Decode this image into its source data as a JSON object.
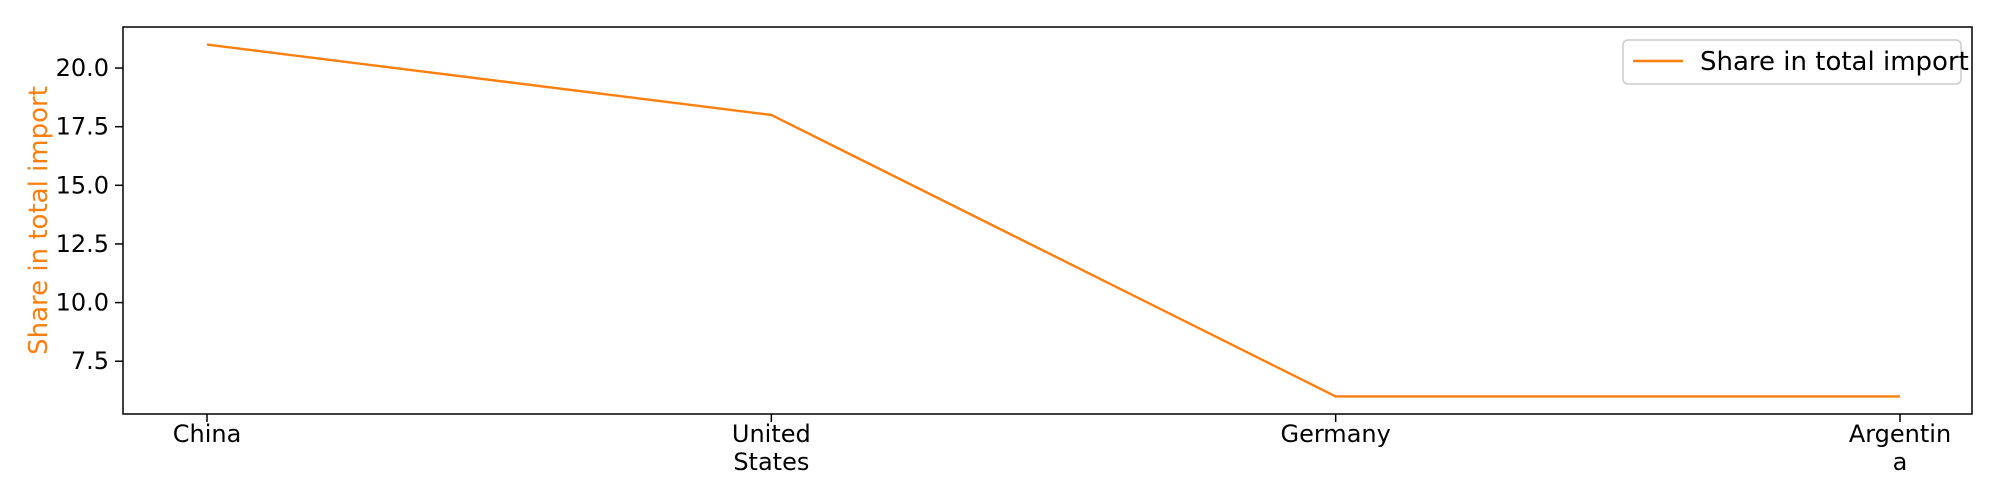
{
  "chart_data": {
    "type": "line",
    "categories": [
      "China",
      "United States",
      "Germany",
      "Argentina"
    ],
    "category_tick_lines": [
      [
        "China"
      ],
      [
        "United",
        "States"
      ],
      [
        "Germany"
      ],
      [
        "Argentin",
        "a"
      ]
    ],
    "series": [
      {
        "name": "Share in total import",
        "values": [
          21.0,
          18.0,
          6.0,
          6.0
        ],
        "color": "#ff7f0e"
      }
    ],
    "title": "",
    "xlabel": "",
    "ylabel": "Share in total import",
    "ylabel_color": "#ff7f0e",
    "ylim": [
      5.25,
      21.75
    ],
    "yticks": [
      7.5,
      10.0,
      12.5,
      15.0,
      17.5,
      20.0
    ],
    "ytick_labels": [
      "7.5",
      "10.0",
      "12.5",
      "15.0",
      "17.5",
      "20.0"
    ],
    "grid": false,
    "legend_position": "top-right"
  }
}
